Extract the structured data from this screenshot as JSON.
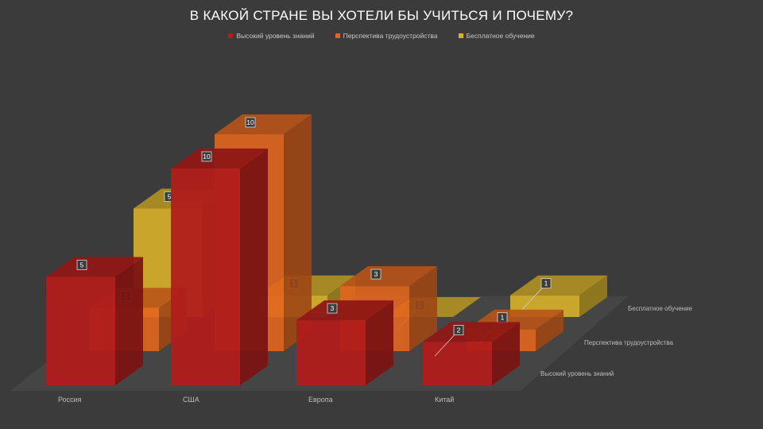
{
  "chart_data": {
    "type": "bar",
    "title": "В КАКОЙ СТРАНЕ ВЫ ХОТЕЛИ БЫ УЧИТЬСЯ И ПОЧЕМУ?",
    "categories": [
      "Россия",
      "США",
      "Европа",
      "Китай"
    ],
    "series": [
      {
        "name": "Высокий уровень знаний",
        "values": [
          5,
          10,
          3,
          2
        ],
        "color": "#b01d1b"
      },
      {
        "name": "Перспектива трудоустройства",
        "values": [
          2,
          10,
          3,
          1
        ],
        "color": "#e2661e"
      },
      {
        "name": "Бесплатное обучение",
        "values": [
          5,
          1,
          0,
          1
        ],
        "color": "#d9b22a"
      }
    ],
    "ylim": [
      0,
      10
    ],
    "depth_labels": [
      "Высокий уровень знаний",
      "Перспектива трудоустройства",
      "Бесплатное обучение"
    ],
    "legend_position": "top",
    "grid": false,
    "style": "3d-column"
  }
}
